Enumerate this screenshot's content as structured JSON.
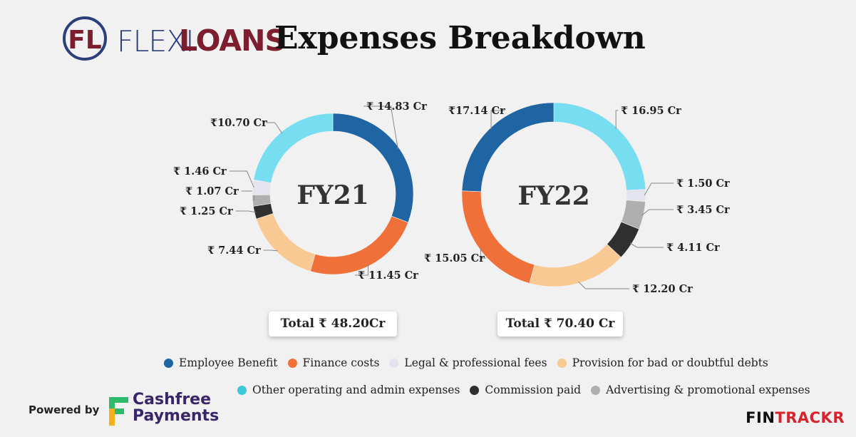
{
  "header": {
    "logo_label": "FL",
    "brand_part1": "FLEXI",
    "brand_part2": "LOANS",
    "title": "Expenses Breakdown"
  },
  "colors": {
    "employee_benefit": "#1f64a3",
    "finance_costs": "#f0703a",
    "legal_professional": "#e4e4ee",
    "provision_bad_debts": "#f9c994",
    "other_operating": "#76def0",
    "commission": "#2f2f2f",
    "advertising": "#afafaf",
    "logo_blue": "#2b3f7a",
    "logo_red": "#7c1e2e"
  },
  "chart_data": [
    {
      "type": "pie",
      "subtype": "donut",
      "center_label": "FY21",
      "total_label": "Total ₹ 48.20Cr",
      "slices": [
        {
          "category": "Employee Benefit",
          "value": 14.83,
          "label": "₹ 14.83 Cr",
          "color": "#1f64a3"
        },
        {
          "category": "Finance costs",
          "value": 11.45,
          "label": "₹ 11.45 Cr",
          "color": "#f0703a"
        },
        {
          "category": "Provision for bad or doubtful debts",
          "value": 7.44,
          "label": "₹ 7.44 Cr",
          "color": "#f9c994"
        },
        {
          "category": "Commission paid",
          "value": 1.25,
          "label": "₹ 1.25 Cr",
          "color": "#2f2f2f"
        },
        {
          "category": "Advertising & promotional expenses",
          "value": 1.07,
          "label": "₹ 1.07 Cr",
          "color": "#afafaf"
        },
        {
          "category": "Legal & professional fees",
          "value": 1.46,
          "label": "₹ 1.46 Cr",
          "color": "#e4e4ee"
        },
        {
          "category": "Other operating and admin expenses",
          "value": 10.7,
          "label": "₹10.70 Cr",
          "color": "#76def0"
        }
      ]
    },
    {
      "type": "pie",
      "subtype": "donut",
      "center_label": "FY22",
      "total_label": "Total ₹ 70.40 Cr",
      "slices": [
        {
          "category": "Other operating and admin expenses",
          "value": 16.95,
          "label": "₹ 16.95 Cr",
          "color": "#76def0"
        },
        {
          "category": "Legal & professional fees",
          "value": 1.5,
          "label": "₹ 1.50 Cr",
          "color": "#e4e4ee"
        },
        {
          "category": "Advertising & promotional expenses",
          "value": 3.45,
          "label": "₹ 3.45 Cr",
          "color": "#afafaf"
        },
        {
          "category": "Commission paid",
          "value": 4.11,
          "label": "₹ 4.11 Cr",
          "color": "#2f2f2f"
        },
        {
          "category": "Provision for bad or doubtful debts",
          "value": 12.2,
          "label": "₹ 12.20 Cr",
          "color": "#f9c994"
        },
        {
          "category": "Finance costs",
          "value": 15.05,
          "label": "₹ 15.05 Cr",
          "color": "#f0703a"
        },
        {
          "category": "Employee Benefit",
          "value": 17.14,
          "label": "₹17.14 Cr",
          "color": "#1f64a3"
        }
      ]
    }
  ],
  "legend": {
    "row1": [
      {
        "label": "Employee Benefit",
        "color": "#1f64a3"
      },
      {
        "label": "Finance costs",
        "color": "#f0703a"
      },
      {
        "label": "Legal & professional fees",
        "color": "#e4e4ee"
      },
      {
        "label": "Provision for bad or doubtful debts",
        "color": "#f9c994"
      }
    ],
    "row2": [
      {
        "label": "Other operating and admin expenses",
        "color": "#3fc9d8"
      },
      {
        "label": "Commission paid",
        "color": "#2f2f2f"
      },
      {
        "label": "Advertising & promotional expenses",
        "color": "#afafaf"
      }
    ]
  },
  "footer": {
    "powered_by": "Powered by",
    "cashfree_line1": "Cashfree",
    "cashfree_line2": "Payments",
    "fintrackr_part1": "FIN",
    "fintrackr_part2": "TRACKR"
  }
}
